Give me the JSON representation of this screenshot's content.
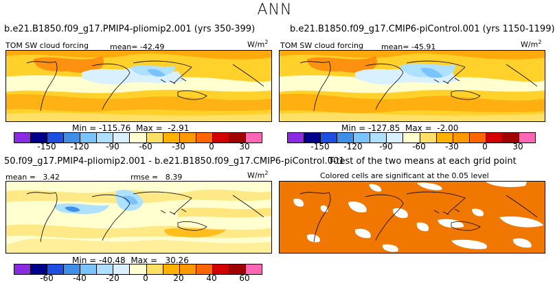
{
  "page_title": "ANN",
  "colors": {
    "warm": [
      "#ffe066",
      "#ffd12a",
      "#ffb300",
      "#ff9900",
      "#ff6600",
      "#f64000",
      "#d40000",
      "#a00000"
    ],
    "cool": [
      "#ffffd0",
      "#d8f0ff",
      "#aee0ff",
      "#79c4ff",
      "#3f8ee8",
      "#1f4fe0",
      "#00008b"
    ],
    "sig": "#f07800"
  },
  "panels": [
    {
      "title": "b.e21.B1850.f09_g17.PMIP4-pliomip2.001 (yrs 350-399)",
      "variable": "TOM SW cloud forcing",
      "mean_label": "mean=",
      "mean_value": "-42.49",
      "units": "W/m",
      "units_sup": "2",
      "min_label": "Min =",
      "min_value": "-115.76",
      "max_label": "Max =",
      "max_value": "-2.91"
    },
    {
      "title": "b.e21.B1850.f09_g17.CMIP6-piControl.001 (yrs 1150-1199)",
      "variable": "TOM SW cloud forcing",
      "mean_label": "mean=",
      "mean_value": "-45.91",
      "units": "W/m",
      "units_sup": "2",
      "min_label": "Min =",
      "min_value": "-127.85",
      "max_label": "Max =",
      "max_value": "-2.00"
    },
    {
      "title": "50.f09_g17.PMIP4-pliomip2.001 - b.e21.B1850.f09_g17.CMIP6-piControl.001",
      "mean_label": "mean =",
      "mean_value": "3.42",
      "rmse_label": "rmse =",
      "rmse_value": "8.39",
      "units": "W/m",
      "units_sup": "2",
      "min_label": "Min =",
      "min_value": "-40.48",
      "max_label": "Max =",
      "max_value": "30.26"
    },
    {
      "title": "T-test of the two means at each grid point",
      "subtitle": "Colored cells are significant at the 0.05 level"
    }
  ],
  "chart_data": [
    {
      "type": "heatmap",
      "title": "b.e21.B1850.f09_g17.PMIP4-pliomip2.001 (yrs 350-399)",
      "variable": "TOM SW cloud forcing",
      "units": "W/m2",
      "mean": -42.49,
      "min": -115.76,
      "max": -2.91,
      "colorbar_levels": [
        -165,
        -150,
        -135,
        -120,
        -105,
        -90,
        -75,
        -60,
        -45,
        -30,
        -15,
        0,
        15,
        30,
        45
      ],
      "colorbar_tick_labels": [
        "-150",
        "-120",
        "-90",
        "-60",
        "-30",
        "0",
        "30"
      ],
      "colorbar_tick_values": [
        -150,
        -120,
        -90,
        -60,
        -30,
        0,
        30
      ]
    },
    {
      "type": "heatmap",
      "title": "b.e21.B1850.f09_g17.CMIP6-piControl.001 (yrs 1150-1199)",
      "variable": "TOM SW cloud forcing",
      "units": "W/m2",
      "mean": -45.91,
      "min": -127.85,
      "max": -2.0,
      "colorbar_levels": [
        -165,
        -150,
        -135,
        -120,
        -105,
        -90,
        -75,
        -60,
        -45,
        -30,
        -15,
        0,
        15,
        30,
        45
      ],
      "colorbar_tick_labels": [
        "-150",
        "-120",
        "-90",
        "-60",
        "-30",
        "0",
        "30"
      ],
      "colorbar_tick_values": [
        -150,
        -120,
        -90,
        -60,
        -30,
        0,
        30
      ]
    },
    {
      "type": "heatmap",
      "title": "50.f09_g17.PMIP4-pliomip2.001 - b.e21.B1850.f09_g17.CMIP6-piControl.001",
      "units": "W/m2",
      "mean": 3.42,
      "rmse": 8.39,
      "min": -40.48,
      "max": 30.26,
      "colorbar_levels": [
        -70,
        -60,
        -50,
        -40,
        -30,
        -20,
        -10,
        0,
        10,
        20,
        30,
        40,
        50,
        60,
        70
      ],
      "colorbar_tick_labels": [
        "-60",
        "-40",
        "-20",
        "0",
        "20",
        "40",
        "60"
      ],
      "colorbar_tick_values": [
        -60,
        -40,
        -20,
        0,
        20,
        40,
        60
      ]
    },
    {
      "type": "heatmap",
      "title": "T-test of the two means at each grid point",
      "subtitle": "Colored cells are significant at the 0.05 level",
      "significance_level": 0.05
    }
  ]
}
